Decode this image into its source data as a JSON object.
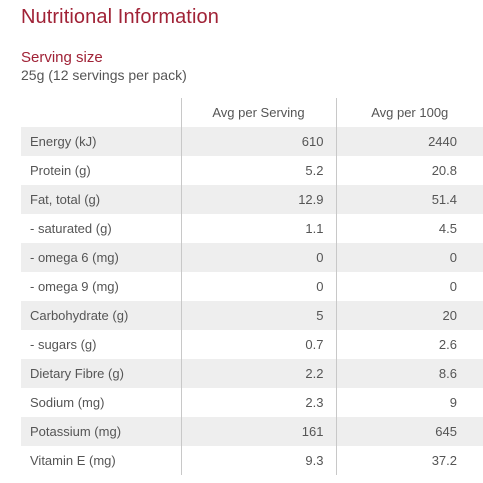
{
  "title": "Nutritional Information",
  "serving": {
    "label": "Serving size",
    "value": "25g (12 servings per pack)"
  },
  "table": {
    "columns": [
      "",
      "Avg per Serving",
      "Avg per 100g"
    ],
    "rows": [
      {
        "name": "Energy (kJ)",
        "per_serving": "610",
        "per_100g": "2440"
      },
      {
        "name": "Protein (g)",
        "per_serving": "5.2",
        "per_100g": "20.8"
      },
      {
        "name": "Fat, total (g)",
        "per_serving": "12.9",
        "per_100g": "51.4"
      },
      {
        "name": "- saturated (g)",
        "per_serving": "1.1",
        "per_100g": "4.5"
      },
      {
        "name": "- omega 6 (mg)",
        "per_serving": "0",
        "per_100g": "0"
      },
      {
        "name": "- omega 9 (mg)",
        "per_serving": "0",
        "per_100g": "0"
      },
      {
        "name": "Carbohydrate (g)",
        "per_serving": "5",
        "per_100g": "20"
      },
      {
        "name": "- sugars (g)",
        "per_serving": "0.7",
        "per_100g": "2.6"
      },
      {
        "name": "Dietary Fibre (g)",
        "per_serving": "2.2",
        "per_100g": "8.6"
      },
      {
        "name": "Sodium (mg)",
        "per_serving": "2.3",
        "per_100g": "9"
      },
      {
        "name": "Potassium (mg)",
        "per_serving": "161",
        "per_100g": "645"
      },
      {
        "name": "Vitamin E (mg)",
        "per_serving": "9.3",
        "per_100g": "37.2"
      }
    ]
  },
  "colors": {
    "accent": "#a02236",
    "text": "#555555",
    "row_shade": "#eeeeee",
    "divider": "#c8c8c8"
  }
}
